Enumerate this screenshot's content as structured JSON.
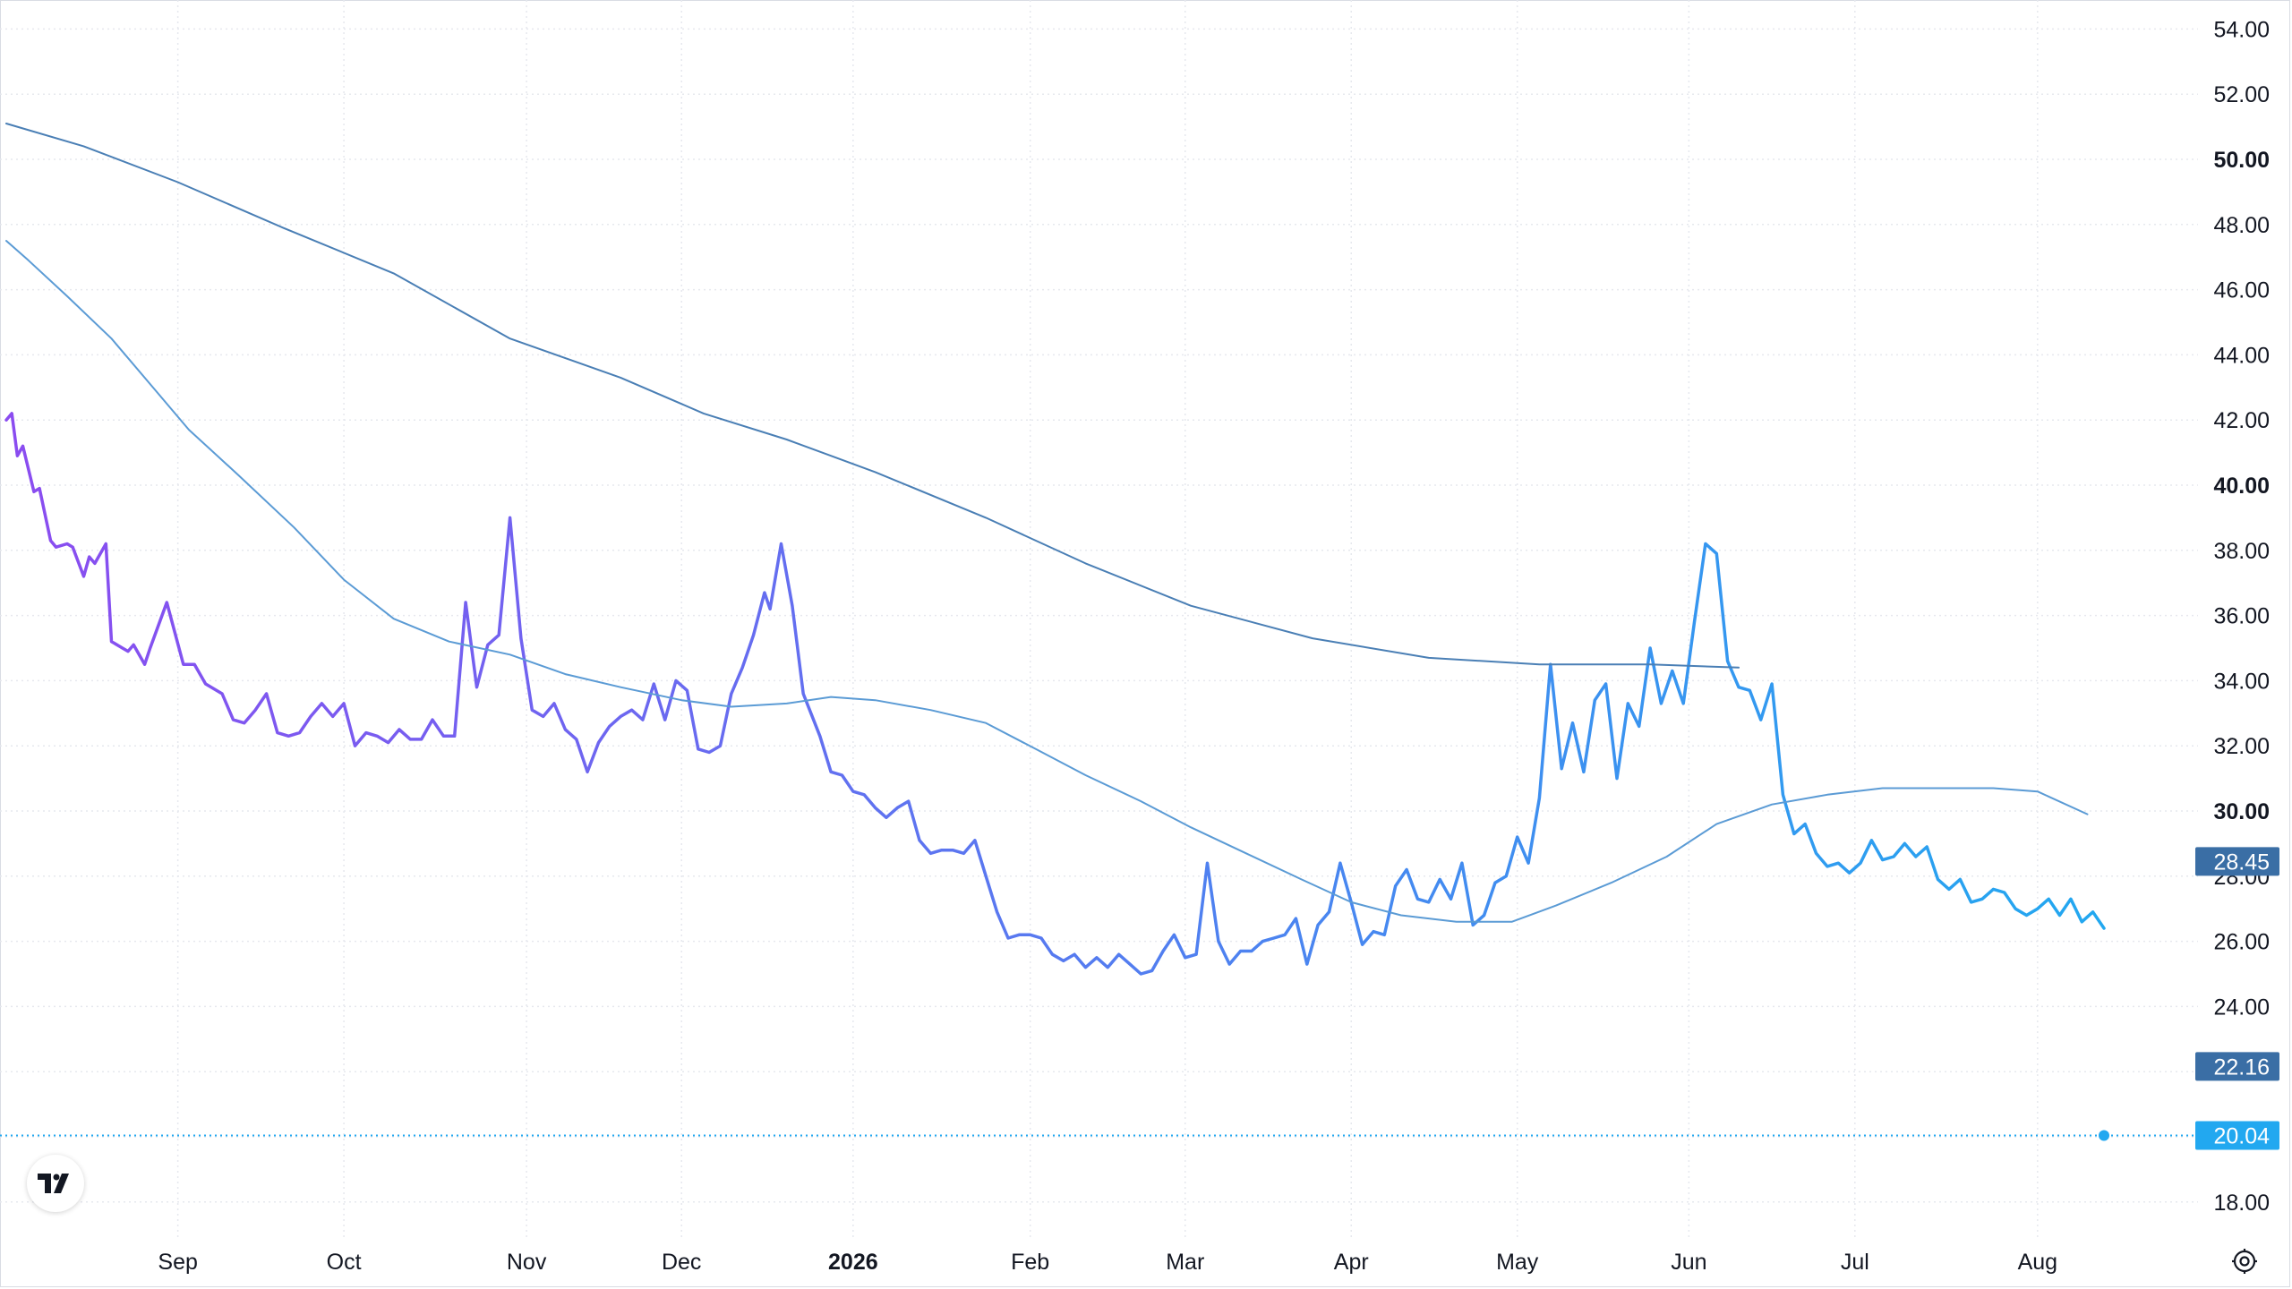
{
  "chart_data": {
    "type": "line",
    "y_axis": {
      "min": 17,
      "max": 55,
      "ticks": [
        "54.00",
        "52.00",
        "50.00",
        "48.00",
        "46.00",
        "44.00",
        "42.00",
        "40.00",
        "38.00",
        "36.00",
        "34.00",
        "32.00",
        "30.00",
        "28.00",
        "26.00",
        "24.00",
        "22.00",
        "20.00",
        "18.00"
      ],
      "major_ticks": [
        "50.00",
        "40.00",
        "30.00"
      ]
    },
    "x_axis": {
      "start": "2025-08-01",
      "end": "2026-08-15",
      "ticks": [
        {
          "label": "Sep",
          "date": "2025-09-01"
        },
        {
          "label": "Oct",
          "date": "2025-10-01"
        },
        {
          "label": "Nov",
          "date": "2025-11-03"
        },
        {
          "label": "Dec",
          "date": "2025-12-01"
        },
        {
          "label": "2026",
          "date": "2026-01-01",
          "major": true
        },
        {
          "label": "Feb",
          "date": "2026-02-02"
        },
        {
          "label": "Mar",
          "date": "2026-03-02"
        },
        {
          "label": "Apr",
          "date": "2026-04-01"
        },
        {
          "label": "May",
          "date": "2026-05-01"
        },
        {
          "label": "Jun",
          "date": "2026-06-01"
        },
        {
          "label": "Jul",
          "date": "2026-07-01"
        },
        {
          "label": "Aug",
          "date": "2026-08-03"
        }
      ]
    },
    "grid": true,
    "series": [
      {
        "role": "price",
        "color_start": "#8b4cf0",
        "color_end": "#22a8f0",
        "points": [
          [
            "2025-08-01",
            42.0
          ],
          [
            "2025-08-02",
            42.2
          ],
          [
            "2025-08-03",
            40.9
          ],
          [
            "2025-08-04",
            41.2
          ],
          [
            "2025-08-06",
            39.8
          ],
          [
            "2025-08-07",
            39.9
          ],
          [
            "2025-08-09",
            38.3
          ],
          [
            "2025-08-10",
            38.1
          ],
          [
            "2025-08-12",
            38.2
          ],
          [
            "2025-08-13",
            38.1
          ],
          [
            "2025-08-15",
            37.2
          ],
          [
            "2025-08-16",
            37.8
          ],
          [
            "2025-08-17",
            37.6
          ],
          [
            "2025-08-19",
            38.2
          ],
          [
            "2025-08-20",
            35.2
          ],
          [
            "2025-08-22",
            35.0
          ],
          [
            "2025-08-23",
            34.9
          ],
          [
            "2025-08-24",
            35.1
          ],
          [
            "2025-08-26",
            34.5
          ],
          [
            "2025-08-27",
            35.0
          ],
          [
            "2025-08-30",
            36.4
          ],
          [
            "2025-09-02",
            34.5
          ],
          [
            "2025-09-04",
            34.5
          ],
          [
            "2025-09-06",
            33.9
          ],
          [
            "2025-09-09",
            33.6
          ],
          [
            "2025-09-11",
            32.8
          ],
          [
            "2025-09-13",
            32.7
          ],
          [
            "2025-09-15",
            33.1
          ],
          [
            "2025-09-17",
            33.6
          ],
          [
            "2025-09-19",
            32.4
          ],
          [
            "2025-09-21",
            32.3
          ],
          [
            "2025-09-23",
            32.4
          ],
          [
            "2025-09-25",
            32.9
          ],
          [
            "2025-09-27",
            33.3
          ],
          [
            "2025-09-29",
            32.9
          ],
          [
            "2025-10-01",
            33.3
          ],
          [
            "2025-10-03",
            32.0
          ],
          [
            "2025-10-05",
            32.4
          ],
          [
            "2025-10-07",
            32.3
          ],
          [
            "2025-10-09",
            32.1
          ],
          [
            "2025-10-11",
            32.5
          ],
          [
            "2025-10-13",
            32.2
          ],
          [
            "2025-10-15",
            32.2
          ],
          [
            "2025-10-17",
            32.8
          ],
          [
            "2025-10-19",
            32.3
          ],
          [
            "2025-10-21",
            32.3
          ],
          [
            "2025-10-23",
            36.4
          ],
          [
            "2025-10-25",
            33.8
          ],
          [
            "2025-10-27",
            35.1
          ],
          [
            "2025-10-29",
            35.4
          ],
          [
            "2025-10-31",
            39.0
          ],
          [
            "2025-11-02",
            35.3
          ],
          [
            "2025-11-04",
            33.1
          ],
          [
            "2025-11-06",
            32.9
          ],
          [
            "2025-11-08",
            33.3
          ],
          [
            "2025-11-10",
            32.5
          ],
          [
            "2025-11-12",
            32.2
          ],
          [
            "2025-11-14",
            31.2
          ],
          [
            "2025-11-16",
            32.1
          ],
          [
            "2025-11-18",
            32.6
          ],
          [
            "2025-11-20",
            32.9
          ],
          [
            "2025-11-22",
            33.1
          ],
          [
            "2025-11-24",
            32.8
          ],
          [
            "2025-11-26",
            33.9
          ],
          [
            "2025-11-28",
            32.8
          ],
          [
            "2025-11-30",
            34.0
          ],
          [
            "2025-12-02",
            33.7
          ],
          [
            "2025-12-04",
            31.9
          ],
          [
            "2025-12-06",
            31.8
          ],
          [
            "2025-12-08",
            32.0
          ],
          [
            "2025-12-10",
            33.6
          ],
          [
            "2025-12-12",
            34.4
          ],
          [
            "2025-12-14",
            35.4
          ],
          [
            "2025-12-16",
            36.7
          ],
          [
            "2025-12-17",
            36.2
          ],
          [
            "2025-12-19",
            38.2
          ],
          [
            "2025-12-21",
            36.3
          ],
          [
            "2025-12-23",
            33.6
          ],
          [
            "2025-12-26",
            32.3
          ],
          [
            "2025-12-28",
            31.2
          ],
          [
            "2025-12-30",
            31.1
          ],
          [
            "2026-01-01",
            30.6
          ],
          [
            "2026-01-03",
            30.5
          ],
          [
            "2026-01-05",
            30.1
          ],
          [
            "2026-01-07",
            29.8
          ],
          [
            "2026-01-09",
            30.1
          ],
          [
            "2026-01-11",
            30.3
          ],
          [
            "2026-01-13",
            29.1
          ],
          [
            "2026-01-15",
            28.7
          ],
          [
            "2026-01-17",
            28.8
          ],
          [
            "2026-01-19",
            28.8
          ],
          [
            "2026-01-21",
            28.7
          ],
          [
            "2026-01-23",
            29.1
          ],
          [
            "2026-01-25",
            28.0
          ],
          [
            "2026-01-27",
            26.9
          ],
          [
            "2026-01-29",
            26.1
          ],
          [
            "2026-01-31",
            26.2
          ],
          [
            "2026-02-02",
            26.2
          ],
          [
            "2026-02-04",
            26.1
          ],
          [
            "2026-02-06",
            25.6
          ],
          [
            "2026-02-08",
            25.4
          ],
          [
            "2026-02-10",
            25.6
          ],
          [
            "2026-02-12",
            25.2
          ],
          [
            "2026-02-14",
            25.5
          ],
          [
            "2026-02-16",
            25.2
          ],
          [
            "2026-02-18",
            25.6
          ],
          [
            "2026-02-20",
            25.3
          ],
          [
            "2026-02-22",
            25.0
          ],
          [
            "2026-02-24",
            25.1
          ],
          [
            "2026-02-26",
            25.7
          ],
          [
            "2026-02-28",
            26.2
          ],
          [
            "2026-03-02",
            25.5
          ],
          [
            "2026-03-04",
            25.6
          ],
          [
            "2026-03-06",
            28.4
          ],
          [
            "2026-03-08",
            26.0
          ],
          [
            "2026-03-10",
            25.3
          ],
          [
            "2026-03-12",
            25.7
          ],
          [
            "2026-03-14",
            25.7
          ],
          [
            "2026-03-16",
            26.0
          ],
          [
            "2026-03-18",
            26.1
          ],
          [
            "2026-03-20",
            26.2
          ],
          [
            "2026-03-22",
            26.7
          ],
          [
            "2026-03-24",
            25.3
          ],
          [
            "2026-03-26",
            26.5
          ],
          [
            "2026-03-28",
            26.9
          ],
          [
            "2026-03-30",
            28.4
          ],
          [
            "2026-04-01",
            27.2
          ],
          [
            "2026-04-03",
            25.9
          ],
          [
            "2026-04-05",
            26.3
          ],
          [
            "2026-04-07",
            26.2
          ],
          [
            "2026-04-09",
            27.7
          ],
          [
            "2026-04-11",
            28.2
          ],
          [
            "2026-04-13",
            27.3
          ],
          [
            "2026-04-15",
            27.2
          ],
          [
            "2026-04-17",
            27.9
          ],
          [
            "2026-04-19",
            27.3
          ],
          [
            "2026-04-21",
            28.4
          ],
          [
            "2026-04-23",
            26.5
          ],
          [
            "2026-04-25",
            26.8
          ],
          [
            "2026-04-27",
            27.8
          ],
          [
            "2026-04-29",
            28.0
          ],
          [
            "2026-05-01",
            29.2
          ],
          [
            "2026-05-03",
            28.4
          ],
          [
            "2026-05-05",
            30.4
          ],
          [
            "2026-05-07",
            34.5
          ],
          [
            "2026-05-09",
            31.3
          ],
          [
            "2026-05-11",
            32.7
          ],
          [
            "2026-05-13",
            31.2
          ],
          [
            "2026-05-15",
            33.4
          ],
          [
            "2026-05-17",
            33.9
          ],
          [
            "2026-05-19",
            31.0
          ],
          [
            "2026-05-21",
            33.3
          ],
          [
            "2026-05-23",
            32.6
          ],
          [
            "2026-05-25",
            35.0
          ],
          [
            "2026-05-27",
            33.3
          ],
          [
            "2026-05-29",
            34.3
          ],
          [
            "2026-05-31",
            33.3
          ],
          [
            "2026-06-02",
            35.8
          ],
          [
            "2026-06-04",
            38.2
          ],
          [
            "2026-06-06",
            37.9
          ],
          [
            "2026-06-08",
            34.6
          ],
          [
            "2026-06-10",
            33.8
          ],
          [
            "2026-06-12",
            33.7
          ],
          [
            "2026-06-14",
            32.8
          ],
          [
            "2026-06-16",
            33.9
          ],
          [
            "2026-06-18",
            30.5
          ],
          [
            "2026-06-20",
            29.3
          ],
          [
            "2026-06-22",
            29.6
          ],
          [
            "2026-06-24",
            28.7
          ],
          [
            "2026-06-26",
            28.3
          ],
          [
            "2026-06-28",
            28.4
          ],
          [
            "2026-06-30",
            28.1
          ],
          [
            "2026-07-02",
            28.4
          ],
          [
            "2026-07-04",
            29.1
          ],
          [
            "2026-07-06",
            28.5
          ],
          [
            "2026-07-08",
            28.6
          ],
          [
            "2026-07-10",
            29.0
          ],
          [
            "2026-07-12",
            28.6
          ],
          [
            "2026-07-14",
            28.9
          ],
          [
            "2026-07-16",
            27.9
          ],
          [
            "2026-07-18",
            27.6
          ],
          [
            "2026-07-20",
            27.9
          ],
          [
            "2026-07-22",
            27.2
          ],
          [
            "2026-07-24",
            27.3
          ],
          [
            "2026-07-26",
            27.6
          ],
          [
            "2026-07-28",
            27.5
          ],
          [
            "2026-07-30",
            27.0
          ],
          [
            "2026-08-01",
            26.8
          ],
          [
            "2026-08-03",
            27.0
          ],
          [
            "2026-08-05",
            27.3
          ],
          [
            "2026-08-07",
            26.8
          ],
          [
            "2026-08-09",
            27.3
          ],
          [
            "2026-08-11",
            26.6
          ],
          [
            "2026-08-13",
            26.9
          ],
          [
            "2026-08-15",
            26.4
          ]
        ]
      },
      {
        "role": "ma-fast",
        "color": "#5b9bd5",
        "points": [
          [
            "2025-08-01",
            47.5
          ],
          [
            "2025-08-05",
            46.9
          ],
          [
            "2025-08-12",
            45.8
          ],
          [
            "2025-08-20",
            44.5
          ],
          [
            "2025-08-28",
            42.9
          ],
          [
            "2025-09-03",
            41.7
          ],
          [
            "2025-09-12",
            40.3
          ],
          [
            "2025-09-22",
            38.7
          ],
          [
            "2025-10-01",
            37.1
          ],
          [
            "2025-10-10",
            35.9
          ],
          [
            "2025-10-20",
            35.2
          ],
          [
            "2025-10-31",
            34.8
          ],
          [
            "2025-11-10",
            34.2
          ],
          [
            "2025-11-20",
            33.8
          ],
          [
            "2025-12-01",
            33.4
          ],
          [
            "2025-12-10",
            33.2
          ],
          [
            "2025-12-20",
            33.3
          ],
          [
            "2025-12-28",
            33.5
          ],
          [
            "2026-01-05",
            33.4
          ],
          [
            "2026-01-15",
            33.1
          ],
          [
            "2026-01-25",
            32.7
          ],
          [
            "2026-02-03",
            31.9
          ],
          [
            "2026-02-12",
            31.1
          ],
          [
            "2026-02-22",
            30.3
          ],
          [
            "2026-03-03",
            29.5
          ],
          [
            "2026-03-13",
            28.7
          ],
          [
            "2026-03-23",
            27.9
          ],
          [
            "2026-04-01",
            27.2
          ],
          [
            "2026-04-10",
            26.8
          ],
          [
            "2026-04-20",
            26.6
          ],
          [
            "2026-04-30",
            26.6
          ],
          [
            "2026-05-08",
            27.1
          ],
          [
            "2026-05-18",
            27.8
          ],
          [
            "2026-05-28",
            28.6
          ],
          [
            "2026-06-06",
            29.6
          ],
          [
            "2026-06-16",
            30.2
          ],
          [
            "2026-06-26",
            30.5
          ],
          [
            "2026-07-06",
            30.7
          ],
          [
            "2026-07-16",
            30.7
          ],
          [
            "2026-07-26",
            30.7
          ],
          [
            "2026-08-03",
            30.6
          ],
          [
            "2026-08-12",
            29.9
          ]
        ]
      },
      {
        "role": "ma-slow",
        "color": "#4a7fb5",
        "points": [
          [
            "2025-08-01",
            51.1
          ],
          [
            "2025-08-15",
            50.4
          ],
          [
            "2025-09-01",
            49.3
          ],
          [
            "2025-09-20",
            47.9
          ],
          [
            "2025-10-10",
            46.5
          ],
          [
            "2025-10-31",
            44.5
          ],
          [
            "2025-11-20",
            43.3
          ],
          [
            "2025-12-05",
            42.2
          ],
          [
            "2025-12-20",
            41.4
          ],
          [
            "2026-01-05",
            40.4
          ],
          [
            "2026-01-25",
            39.0
          ],
          [
            "2026-02-12",
            37.6
          ],
          [
            "2026-03-03",
            36.3
          ],
          [
            "2026-03-25",
            35.3
          ],
          [
            "2026-04-15",
            34.7
          ],
          [
            "2026-05-05",
            34.5
          ],
          [
            "2026-05-25",
            34.5
          ],
          [
            "2026-06-10",
            34.4
          ]
        ]
      }
    ],
    "price_labels": [
      {
        "text": "28.45",
        "value": 28.45,
        "color": "#3a6ea5"
      },
      {
        "text": "22.16",
        "value": 22.16,
        "color": "#3a6ea5"
      },
      {
        "text": "20.04",
        "value": 20.04,
        "color": "#22a8f0"
      }
    ]
  }
}
